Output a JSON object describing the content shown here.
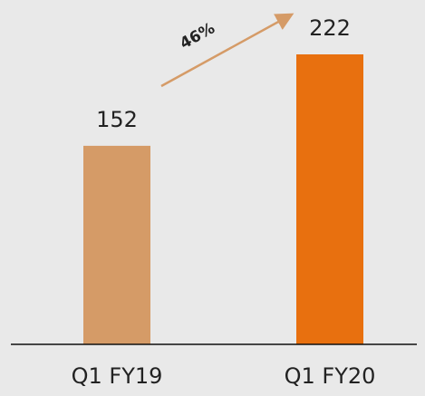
{
  "chart_data": {
    "type": "bar",
    "categories": [
      "Q1 FY19",
      "Q1 FY20"
    ],
    "values": [
      152,
      222
    ],
    "colors": [
      "#d59b67",
      "#e8700f"
    ],
    "annotation": "46%",
    "arrow_color": "#d59b67"
  }
}
